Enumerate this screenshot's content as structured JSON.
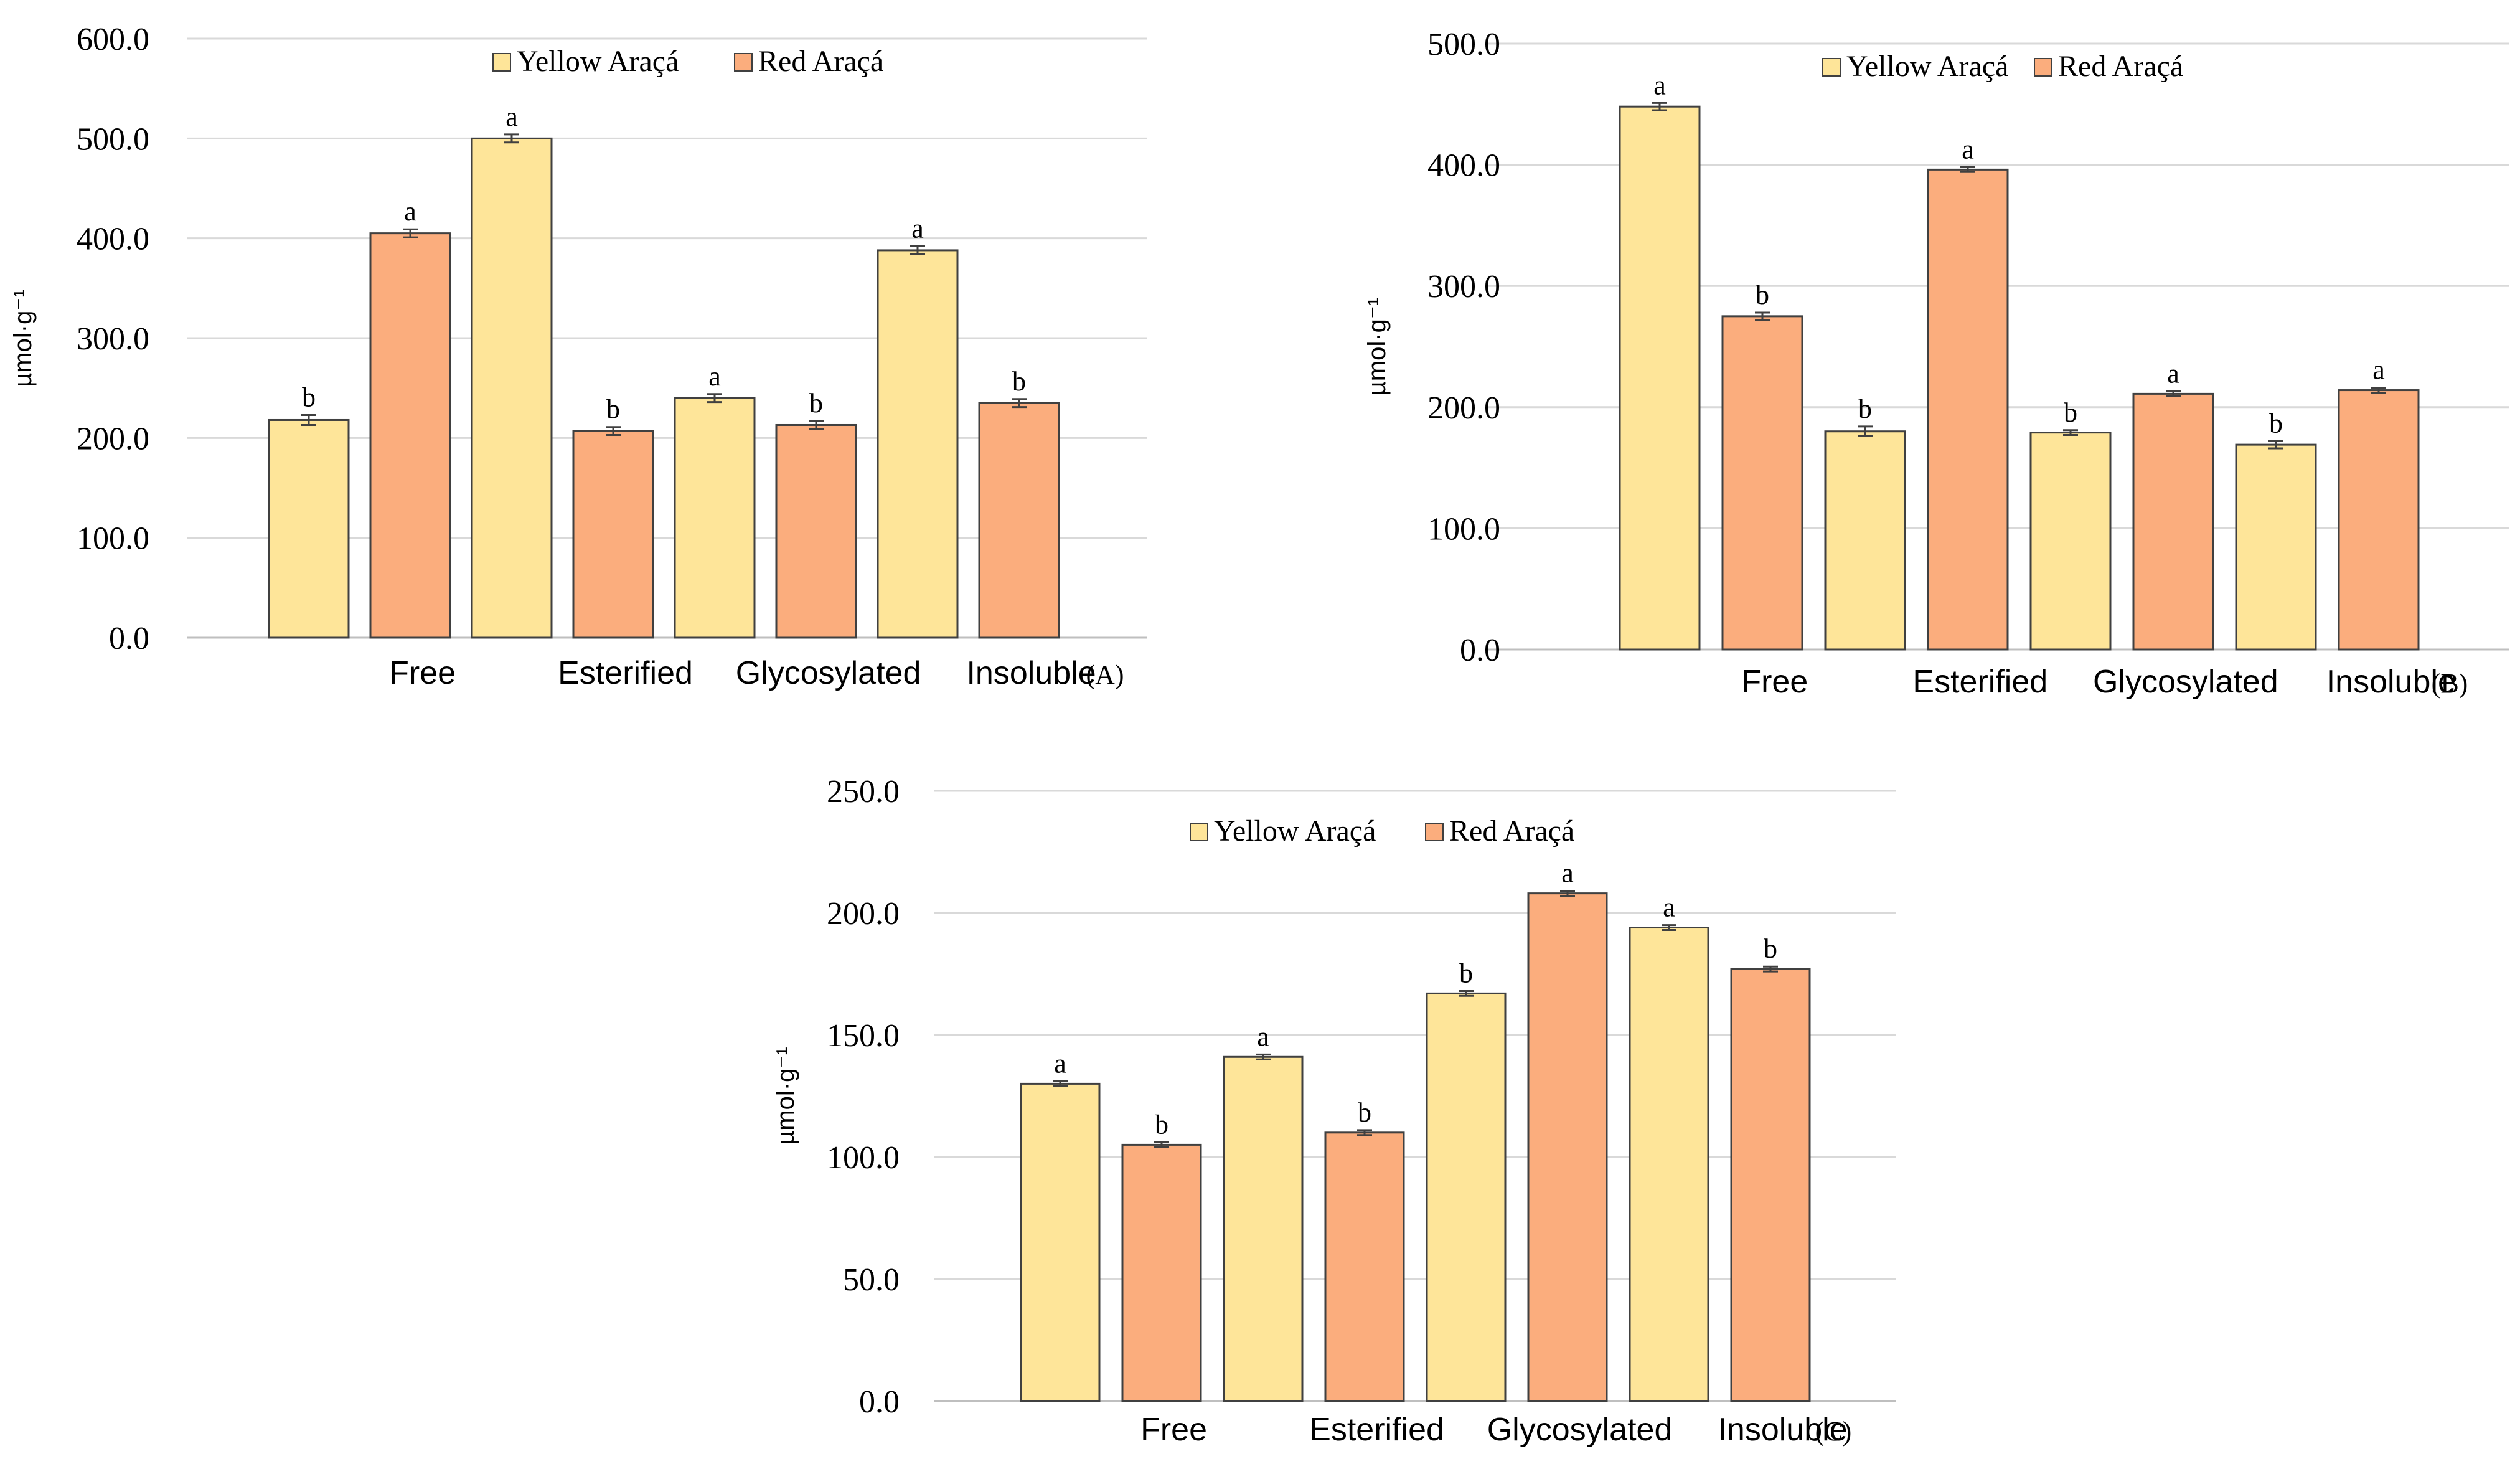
{
  "colors": {
    "yellow": "#fee599",
    "red": "#fbad7d",
    "grid": "#d9d9d9"
  },
  "chart_data": [
    {
      "type": "bar",
      "panel_label": "(A)",
      "ylabel": "µmol·g⁻¹",
      "ylim": [
        0,
        600
      ],
      "yticks": [
        "0.0",
        "100.0",
        "200.0",
        "300.0",
        "400.0",
        "500.0",
        "600.0"
      ],
      "categories": [
        "Free",
        "Esterified",
        "Glycosylated",
        "Insoluble"
      ],
      "series": [
        {
          "name": "Yellow Araçá",
          "values": [
            218,
            500,
            240,
            388
          ],
          "errors": [
            5,
            4,
            4,
            4
          ],
          "letters": [
            "b",
            "a",
            "a",
            "a"
          ]
        },
        {
          "name": "Red Araçá",
          "values": [
            405,
            207,
            213,
            235
          ],
          "errors": [
            4,
            4,
            4,
            4
          ],
          "letters": [
            "a",
            "b",
            "b",
            "b"
          ]
        }
      ],
      "legend": "top-center"
    },
    {
      "type": "bar",
      "panel_label": "(B)",
      "ylabel": "µmol·g⁻¹",
      "ylim": [
        0,
        500
      ],
      "yticks": [
        "0.0",
        "100.0",
        "200.0",
        "300.0",
        "400.0",
        "500.0"
      ],
      "categories": [
        "Free",
        "Esterified",
        "Glycosylated",
        "Insoluble"
      ],
      "series": [
        {
          "name": "Yellow Araçá",
          "values": [
            448,
            180,
            179,
            169
          ],
          "errors": [
            3,
            4,
            2,
            3
          ],
          "letters": [
            "a",
            "b",
            "b",
            "b"
          ]
        },
        {
          "name": "Red Araçá",
          "values": [
            275,
            396,
            211,
            214
          ],
          "errors": [
            3,
            2,
            2,
            2
          ],
          "letters": [
            "b",
            "a",
            "a",
            "a"
          ]
        }
      ],
      "legend": "top-center"
    },
    {
      "type": "bar",
      "panel_label": "(C)",
      "ylabel": "µmol·g⁻¹",
      "ylim": [
        0,
        250
      ],
      "yticks": [
        "0.0",
        "50.0",
        "100.0",
        "150.0",
        "200.0",
        "250.0"
      ],
      "categories": [
        "Free",
        "Esterified",
        "Glycosylated",
        "Insoluble"
      ],
      "series": [
        {
          "name": "Yellow Araçá",
          "values": [
            130,
            141,
            167,
            194
          ],
          "errors": [
            1,
            1,
            1,
            1
          ],
          "letters": [
            "a",
            "a",
            "b",
            "a"
          ]
        },
        {
          "name": "Red Araçá",
          "values": [
            105,
            110,
            208,
            177
          ],
          "errors": [
            1,
            1,
            1,
            1
          ],
          "letters": [
            "b",
            "b",
            "a",
            "b"
          ]
        }
      ],
      "legend": "top-center"
    }
  ]
}
